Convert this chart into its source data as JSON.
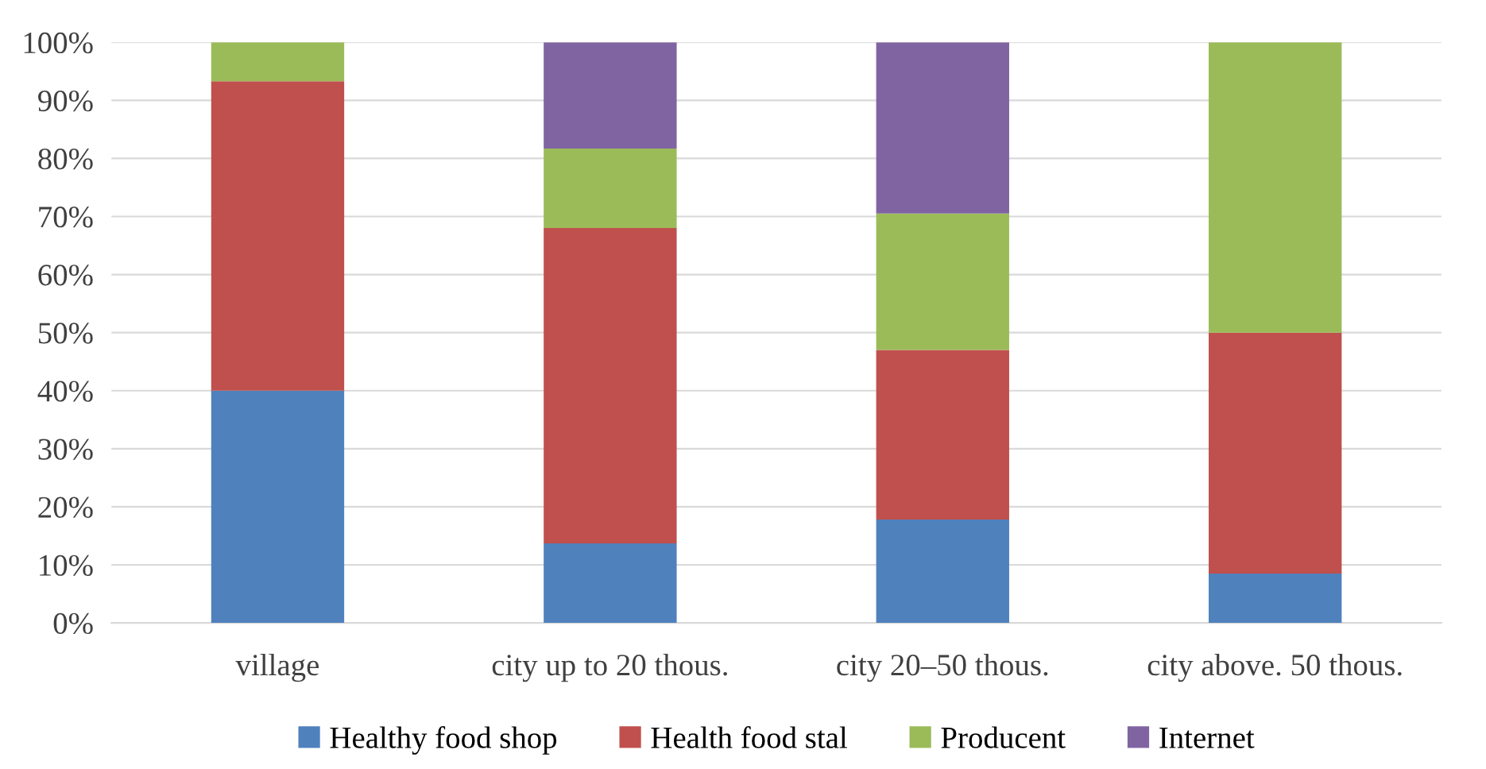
{
  "chart_data": {
    "type": "bar",
    "stacked": true,
    "categories": [
      "village",
      "city up to 20 thous.",
      "city 20–50 thous.",
      "city above. 50 thous."
    ],
    "series": [
      {
        "name": "Healthy food shop",
        "color": "#4f81bd",
        "values": [
          40,
          13.7,
          17.8,
          8.5
        ]
      },
      {
        "name": "Health food stal",
        "color": "#c0504d",
        "values": [
          53.3,
          54.3,
          29.2,
          41.5
        ]
      },
      {
        "name": "Producent",
        "color": "#9bbb59",
        "values": [
          6.7,
          13.7,
          23.5,
          50
        ]
      },
      {
        "name": "Internet",
        "color": "#8064a2",
        "values": [
          0,
          18.3,
          29.5,
          0
        ]
      }
    ],
    "ylim": [
      0,
      100
    ],
    "yticks": [
      {
        "value": 0,
        "label": "0%"
      },
      {
        "value": 10,
        "label": "10%"
      },
      {
        "value": 20,
        "label": "20%"
      },
      {
        "value": 30,
        "label": "30%"
      },
      {
        "value": 40,
        "label": "40%"
      },
      {
        "value": 50,
        "label": "50%"
      },
      {
        "value": 60,
        "label": "60%"
      },
      {
        "value": 70,
        "label": "70%"
      },
      {
        "value": 80,
        "label": "80%"
      },
      {
        "value": 90,
        "label": "90%"
      },
      {
        "value": 100,
        "label": "100%"
      }
    ],
    "grid": "y",
    "legend": "bottom"
  }
}
